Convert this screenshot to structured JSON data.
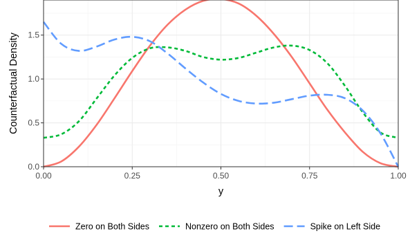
{
  "chart_data": {
    "type": "line",
    "title": "",
    "xlabel": "y",
    "ylabel": "Counterfactual Density",
    "xlim": [
      0,
      1
    ],
    "ylim": [
      0,
      1.9
    ],
    "x_ticks": [
      0,
      0.25,
      0.5,
      0.75,
      1
    ],
    "x_tick_labels": [
      "0.00",
      "0.25",
      "0.50",
      "0.75",
      "1.00"
    ],
    "y_ticks": [
      0,
      0.5,
      1,
      1.5
    ],
    "y_tick_labels": [
      "0.0",
      "0.5",
      "1.0",
      "1.5"
    ],
    "grid": true,
    "legend_position": "bottom",
    "x": [
      0,
      0.05,
      0.1,
      0.15,
      0.2,
      0.25,
      0.3,
      0.35,
      0.4,
      0.45,
      0.5,
      0.55,
      0.6,
      0.65,
      0.7,
      0.75,
      0.8,
      0.85,
      0.9,
      0.95,
      1
    ],
    "series": [
      {
        "name": "Zero on Both Sides",
        "color": "#F8766D",
        "dash": "solid",
        "values": [
          0,
          0.06,
          0.23,
          0.48,
          0.78,
          1.09,
          1.38,
          1.62,
          1.79,
          1.89,
          1.91,
          1.86,
          1.72,
          1.51,
          1.25,
          0.95,
          0.65,
          0.39,
          0.17,
          0.04,
          0
        ]
      },
      {
        "name": "Nonzero on Both Sides",
        "color": "#00BA38",
        "dash": "dashed",
        "values": [
          0.33,
          0.37,
          0.52,
          0.78,
          1.04,
          1.24,
          1.35,
          1.36,
          1.32,
          1.25,
          1.22,
          1.24,
          1.3,
          1.36,
          1.38,
          1.33,
          1.18,
          0.92,
          0.62,
          0.39,
          0.33
        ]
      },
      {
        "name": "Spike on Left Side",
        "color": "#619CFF",
        "dash": "longdash",
        "values": [
          1.65,
          1.4,
          1.32,
          1.37,
          1.45,
          1.48,
          1.43,
          1.29,
          1.12,
          0.96,
          0.83,
          0.75,
          0.72,
          0.73,
          0.77,
          0.81,
          0.82,
          0.78,
          0.64,
          0.38,
          0
        ]
      }
    ]
  }
}
